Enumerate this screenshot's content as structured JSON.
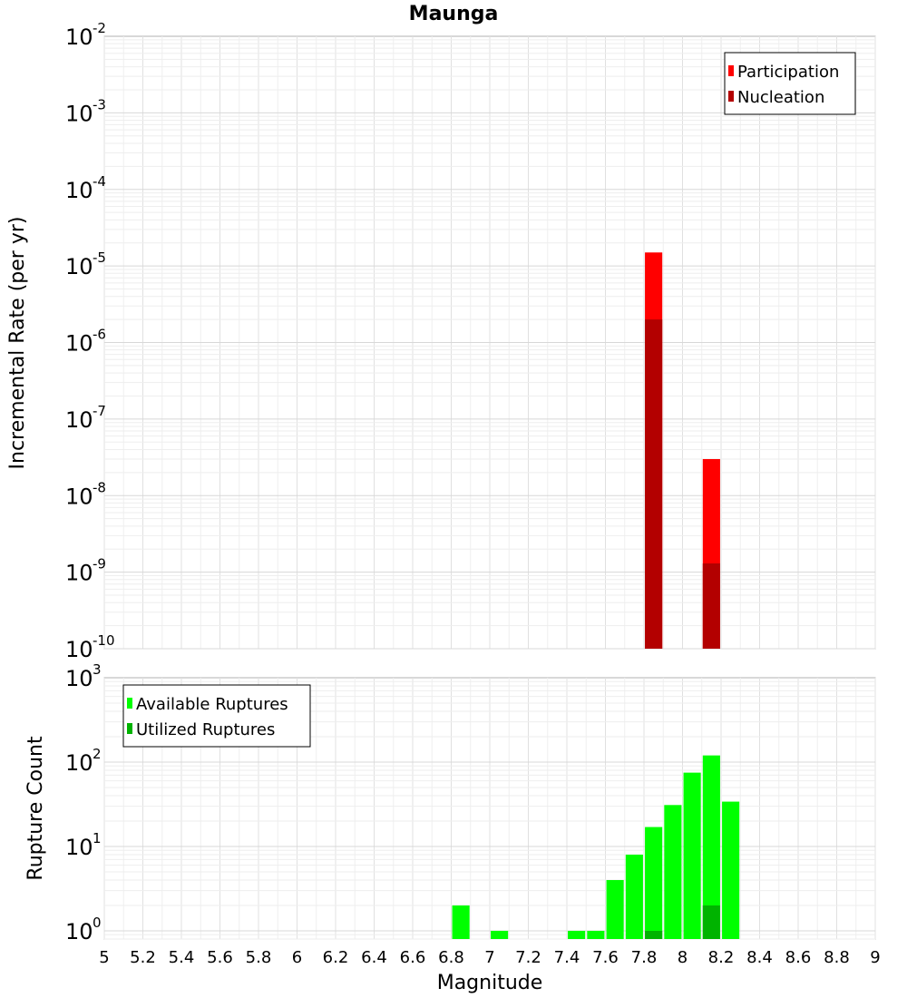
{
  "chart_data": [
    {
      "type": "bar",
      "title": "Maunga",
      "xlabel": "",
      "ylabel": "Incremental Rate (per yr)",
      "yscale": "log",
      "xlim": [
        5,
        9
      ],
      "ylim": [
        1e-10,
        0.01
      ],
      "ytick_exponents": [
        "-2",
        "-3",
        "-4",
        "-5",
        "-6",
        "-7",
        "-8",
        "-9",
        "-10"
      ],
      "ytick_base": "10",
      "grid": true,
      "legend_position": "top-right",
      "bar_width": 0.09,
      "series": [
        {
          "name": "Participation",
          "color": "#ff0000",
          "x": [
            7.85,
            8.15
          ],
          "values": [
            1.5e-05,
            3e-08
          ]
        },
        {
          "name": "Nucleation",
          "color": "#b30000",
          "x": [
            7.85,
            8.15
          ],
          "values": [
            2e-06,
            1.3e-09
          ]
        }
      ]
    },
    {
      "type": "bar",
      "xlabel": "Magnitude",
      "ylabel": "Rupture Count",
      "yscale": "log",
      "xlim": [
        5,
        9
      ],
      "ylim": [
        0.8,
        1000
      ],
      "ytick_exponents": [
        "3",
        "2",
        "1",
        "0"
      ],
      "ytick_base": "10",
      "xticks": [
        "5",
        "5.2",
        "5.4",
        "5.6",
        "5.8",
        "6",
        "6.2",
        "6.4",
        "6.6",
        "6.8",
        "7",
        "7.2",
        "7.4",
        "7.6",
        "7.8",
        "8",
        "8.2",
        "8.4",
        "8.6",
        "8.8",
        "9"
      ],
      "grid": true,
      "legend_position": "top-left",
      "bar_width": 0.09,
      "series": [
        {
          "name": "Available Ruptures",
          "color": "#00ff00",
          "x": [
            6.85,
            7.05,
            7.45,
            7.55,
            7.65,
            7.75,
            7.85,
            7.95,
            8.05,
            8.15,
            8.25
          ],
          "values": [
            2,
            1,
            1,
            1,
            4,
            8,
            17,
            31,
            75,
            120,
            34
          ]
        },
        {
          "name": "Utilized Ruptures",
          "color": "#00b300",
          "x": [
            7.85,
            8.15
          ],
          "values": [
            1,
            2
          ]
        }
      ]
    }
  ]
}
